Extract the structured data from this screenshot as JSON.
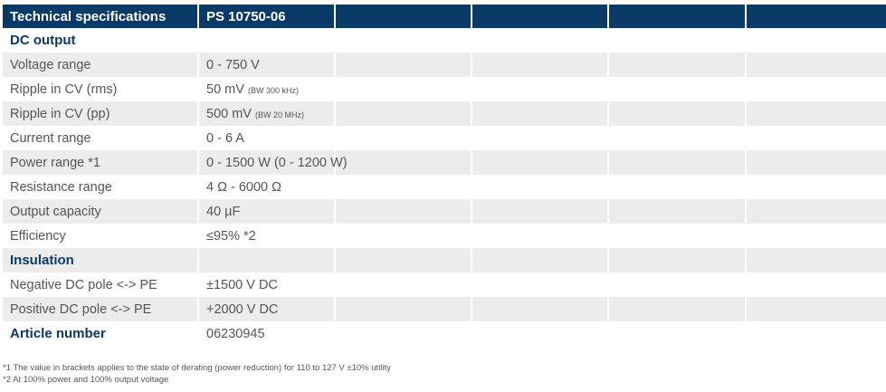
{
  "header": {
    "title": "Technical specifications",
    "model": "PS 10750-06",
    "empty_cols": [
      "",
      "",
      "",
      ""
    ]
  },
  "rows": [
    {
      "kind": "section",
      "label": "DC output",
      "value": "",
      "note": "",
      "shaded": false
    },
    {
      "kind": "data",
      "label": "Voltage range",
      "value": "0 - 750 V",
      "note": "",
      "shaded": true
    },
    {
      "kind": "data",
      "label": "Ripple in CV (rms)",
      "value": "50 mV",
      "note": "(BW 300 kHz)",
      "shaded": false
    },
    {
      "kind": "data",
      "label": "Ripple in CV (pp)",
      "value": "500 mV",
      "note": "(BW 20 MHz)",
      "shaded": true
    },
    {
      "kind": "data",
      "label": "Current range",
      "value": "0 - 6 A",
      "note": "",
      "shaded": false
    },
    {
      "kind": "data",
      "label": "Power range *1",
      "value": "0 - 1500 W (0 - 1200 W)",
      "note": "",
      "shaded": true
    },
    {
      "kind": "data",
      "label": "Resistance range",
      "value": "4 Ω - 6000 Ω",
      "note": "",
      "shaded": false
    },
    {
      "kind": "data",
      "label": "Output capacity",
      "value": "40 µF",
      "note": "",
      "shaded": true
    },
    {
      "kind": "data",
      "label": "Efficiency",
      "value": "≤95% *2",
      "note": "",
      "shaded": false
    },
    {
      "kind": "section",
      "label": "Insulation",
      "value": "",
      "note": "",
      "shaded": true
    },
    {
      "kind": "data",
      "label": "Negative DC pole <-> PE",
      "value": "±1500 V DC",
      "note": "",
      "shaded": false
    },
    {
      "kind": "data",
      "label": "Positive DC pole <-> PE",
      "value": "+2000 V DC",
      "note": "",
      "shaded": true
    },
    {
      "kind": "section",
      "label": "Article number",
      "value": "06230945",
      "note": "",
      "shaded": false
    }
  ],
  "footnotes": [
    "*1 The value in brackets applies to the state of derating (power reduction) for 110 to 127 V ±10% utility",
    "*2 At 100% power and 100% output voltage"
  ],
  "colors": {
    "header_bg": "#0a3a68",
    "section_text": "#0a3a68",
    "shade": "#ececec",
    "text": "#555555"
  }
}
